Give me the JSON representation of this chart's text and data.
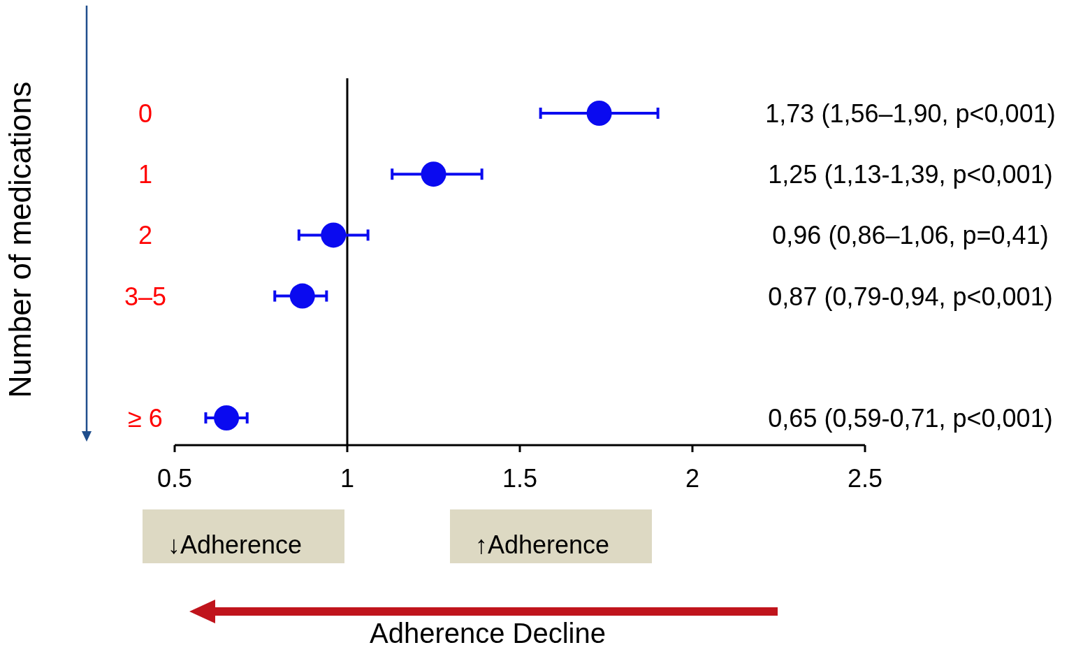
{
  "chart_data": {
    "type": "scatter",
    "orientation": "horizontal",
    "ylabel": "Number of medications",
    "categories": [
      "0",
      "1",
      "2",
      "3–5",
      null,
      "≥ 6"
    ],
    "values": [
      1.73,
      1.25,
      0.96,
      0.87,
      null,
      0.65
    ],
    "errors": [
      [
        1.56,
        1.9
      ],
      [
        1.13,
        1.39
      ],
      [
        0.86,
        1.06
      ],
      [
        0.79,
        0.94
      ],
      null,
      [
        0.59,
        0.71
      ]
    ],
    "value_labels": [
      "1,73 (1,56–1,90, p<0,001)",
      "1,25 (1,13-1,39, p<0,001)",
      "0,96 (0,86–1,06, p=0,41)",
      "0,87 (0,79-0,94, p<0,001)",
      null,
      "0,65 (0,59-0,71, p<0,001)"
    ],
    "color": "#0a0af0",
    "marker": "circle",
    "grid": false,
    "xlim": [
      0.5,
      2.5
    ],
    "xticks": [
      0.5,
      1,
      1.5,
      2,
      2.5
    ],
    "ref_lines": [
      {
        "axis": "x",
        "value": 1,
        "color": "#000000"
      }
    ],
    "annotations": [
      "↓Adherence",
      "↑Adherence",
      "Adherence Decline"
    ]
  }
}
